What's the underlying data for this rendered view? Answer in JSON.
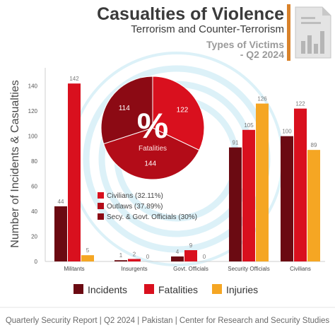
{
  "header": {
    "title": "Casualties of Violence",
    "subtitle": "Terrorism and Counter-Terrorism",
    "victims_title": "Types of Victims",
    "victims_subtitle": "- Q2 2024"
  },
  "footer": {
    "text": "Quarterly Security Report | Q2 2024 | Pakistan | Center for Research and Security Studies"
  },
  "colors": {
    "incidents": "#6b0a12",
    "fatalities": "#d9101e",
    "injuries": "#f5a623",
    "title": "#3a3a3a",
    "accent_bar": "#d9822b",
    "subtitle_gray": "#9a9a9a",
    "watermark": "#bfe6f3"
  },
  "icons": {
    "report": "document-bar-chart-icon",
    "watermark": "concentric-circles-watermark"
  },
  "chart_data": [
    {
      "type": "bar",
      "categories": [
        "Militants",
        "Insurgents",
        "Govt. Officials",
        "Security Officials",
        "Civilians"
      ],
      "series": [
        {
          "name": "Incidents",
          "values": [
            44,
            1,
            4,
            91,
            100
          ]
        },
        {
          "name": "Fatalities",
          "values": [
            142,
            2,
            9,
            105,
            122
          ]
        },
        {
          "name": "Injuries",
          "values": [
            5,
            0,
            0,
            126,
            89
          ]
        }
      ],
      "title": "",
      "xlabel": "",
      "ylabel": "Number of Incidents & Casualties",
      "ylim": [
        0,
        150
      ],
      "yticks": [
        0,
        20,
        40,
        60,
        80,
        100,
        120,
        140
      ],
      "grid": false,
      "legend": "bottom"
    },
    {
      "type": "pie",
      "title": "",
      "center_label": "%",
      "center_sublabel": "Fatalities",
      "slices": [
        {
          "label": "Civilians",
          "value": 122,
          "percent_label": "(32.11%)",
          "color": "#d9101e"
        },
        {
          "label": "Outlaws",
          "value": 144,
          "percent_label": "(37.89%)",
          "color": "#b30c18"
        },
        {
          "label": "Secy. & Govt. Officials",
          "value": 114,
          "percent_label": "(30%)",
          "color": "#8c0a14"
        }
      ],
      "legend": "bottom-left of pie"
    }
  ]
}
